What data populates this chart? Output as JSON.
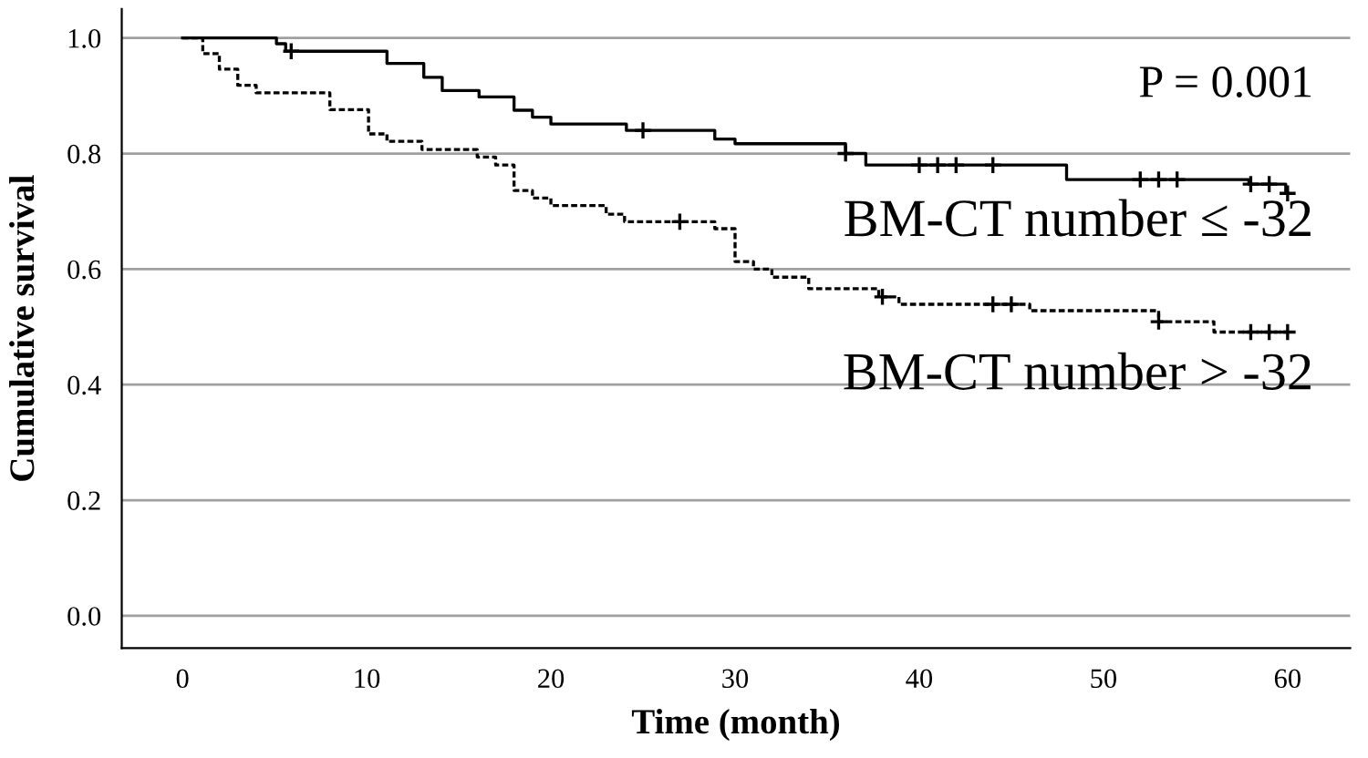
{
  "chart_data": {
    "type": "step",
    "xlabel": "Time (month)",
    "ylabel": "Cumulative survival",
    "annotations": [
      "P = 0.001"
    ],
    "xlim": [
      -3.3,
      63.4
    ],
    "ylim": [
      -0.056,
      1.05
    ],
    "xticks": [
      0,
      10,
      20,
      30,
      40,
      50,
      60
    ],
    "yticks": [
      {
        "value": 0,
        "label": "0.0"
      },
      {
        "value": 0.2,
        "label": "0.2"
      },
      {
        "value": 0.4,
        "label": "0.4"
      },
      {
        "value": 0.6,
        "label": "0.6"
      },
      {
        "value": 0.8,
        "label": "0.8"
      },
      {
        "value": 1,
        "label": "1.0"
      }
    ],
    "grid": "y",
    "series": [
      {
        "name": "BM-CT number ≤ -32",
        "color": "#000000",
        "line_style": "solid",
        "x": [
          0,
          5.1,
          5.6,
          11.1,
          13.1,
          14.1,
          16.1,
          18.0,
          19.0,
          20.0,
          24.1,
          28.9,
          30.0,
          36.0,
          37.1,
          48.0,
          57.9,
          59.9,
          60
        ],
        "values": [
          1.0,
          0.99,
          0.977,
          0.956,
          0.932,
          0.909,
          0.898,
          0.875,
          0.863,
          0.851,
          0.84,
          0.825,
          0.817,
          0.8,
          0.78,
          0.755,
          0.747,
          0.731,
          0.731
        ]
      },
      {
        "name": "BM-CT number > -32",
        "color": "#000000",
        "line_style": "dashed",
        "x": [
          0,
          1.1,
          2.0,
          3.0,
          4.0,
          8.0,
          10.1,
          11.1,
          13.0,
          16.0,
          17.0,
          18.0,
          19.0,
          20.0,
          23.0,
          24.0,
          28.9,
          30.0,
          31.0,
          32.0,
          34.0,
          37.8,
          38.9,
          46.0,
          53.0,
          56.0,
          60
        ],
        "values": [
          1.0,
          0.973,
          0.946,
          0.918,
          0.905,
          0.876,
          0.834,
          0.821,
          0.807,
          0.794,
          0.78,
          0.736,
          0.723,
          0.71,
          0.695,
          0.682,
          0.67,
          0.613,
          0.6,
          0.586,
          0.566,
          0.552,
          0.539,
          0.528,
          0.509,
          0.491,
          0.491
        ]
      },
      {
        "type": "scatter",
        "marker": "cross",
        "color": "#000000",
        "x": [
          5.9,
          25,
          36,
          40,
          41,
          42,
          44,
          52,
          53,
          54,
          58,
          59,
          60
        ],
        "values": [
          0.977,
          0.84,
          0.8,
          0.78,
          0.78,
          0.78,
          0.78,
          0.755,
          0.755,
          0.755,
          0.747,
          0.747,
          0.731
        ]
      },
      {
        "type": "scatter",
        "marker": "cross",
        "color": "#000000",
        "x": [
          27,
          38,
          44,
          45,
          53,
          58,
          59,
          60
        ],
        "values": [
          0.682,
          0.552,
          0.539,
          0.539,
          0.509,
          0.491,
          0.491,
          0.491
        ]
      }
    ]
  }
}
